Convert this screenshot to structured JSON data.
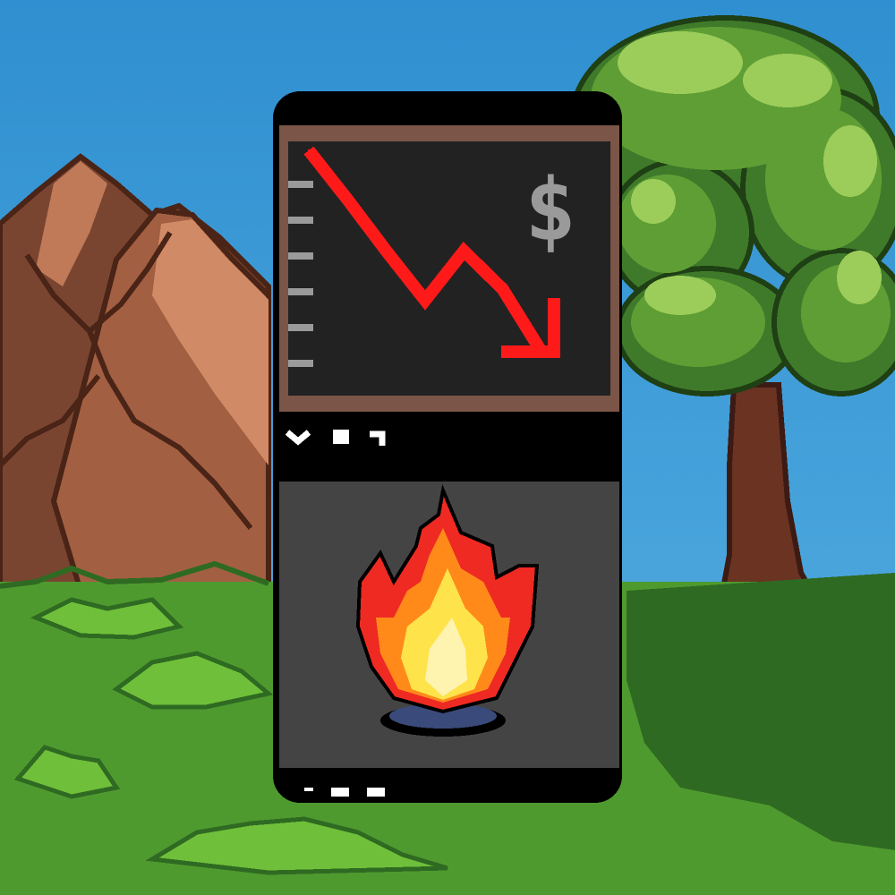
{
  "scene": {
    "sky_top": "#2f8fd0",
    "sky_bottom": "#4aa5dc",
    "grass": "#4f9a2f",
    "grass_light": "#6fbf3a",
    "grass_dark": "#2f6a22",
    "mountain_dark": "#7a4530",
    "mountain_mid": "#a35f42",
    "mountain_light": "#d18a66",
    "mountain_outline": "#4a2416",
    "tree_trunk": "#6a3322",
    "tree_trunk_dark": "#3d1a14",
    "leaf_dark": "#3f7a2a",
    "leaf_mid": "#5e9e34",
    "leaf_light": "#9ccc5a"
  },
  "device": {
    "body_color": "#000000",
    "screen_frame_color": "#7a5548",
    "screen_color": "#222222",
    "lower_panel_color": "#444444",
    "chart_line_color": "#ff1a1a",
    "currency_glyph": "$",
    "currency_icon": "dollar-sign-icon",
    "top_indicators": [
      "chevron-down-icon",
      "square-icon",
      "corner-icon"
    ],
    "bottom_indicators": [
      "dash-icon",
      "square-icon",
      "square-icon"
    ],
    "tick_count": 6,
    "fire_icon": "fire-icon",
    "fire_colors": {
      "outer": "#ee2a22",
      "mid": "#ff8a1a",
      "inner": "#ffe34a",
      "core": "#fff3b0",
      "base": "#3a4a7a"
    }
  },
  "chart_data": {
    "type": "line",
    "trend": "down",
    "values": [
      100,
      78,
      55,
      33,
      55,
      38,
      10
    ],
    "arrowhead": "down-right",
    "ylim": [
      0,
      100
    ],
    "grid": false
  }
}
